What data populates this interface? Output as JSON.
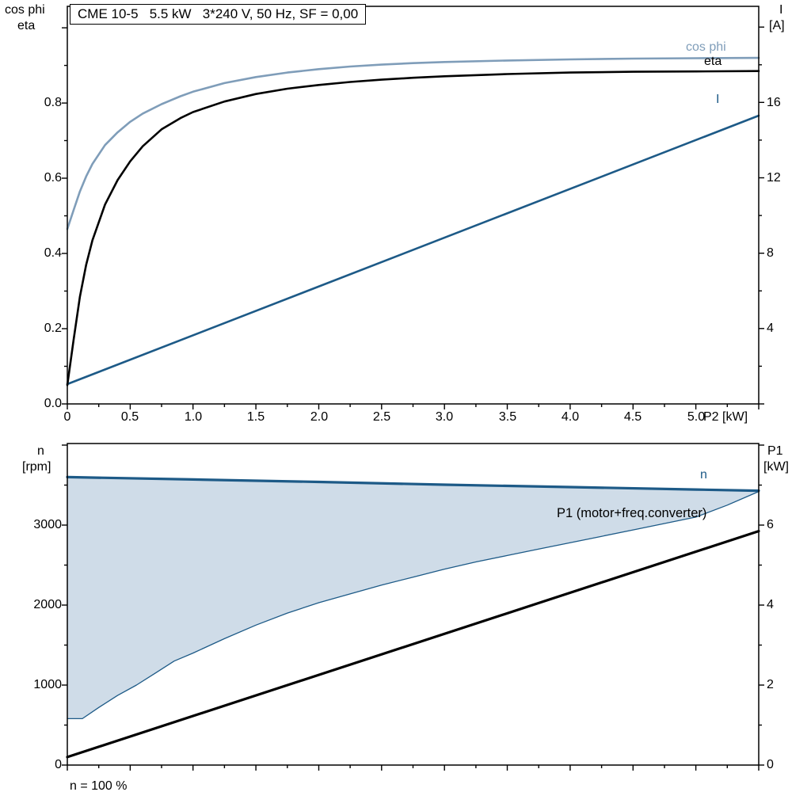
{
  "title": "CME 10-5   5.5 kW   3*240 V, 50 Hz, SF = 0,00",
  "colors": {
    "dark_blue": "#1d5a87",
    "light_blue": "#7f9db9",
    "fill_blue": "#cfdce8",
    "black": "#000000"
  },
  "top_chart": {
    "left_axis_title_1": "cos phi",
    "left_axis_title_2": "eta",
    "right_axis_title_1": "I",
    "right_axis_title_2": "[A]",
    "x_axis_label": "P2 [kW]",
    "y_ticks_left": [
      "0.0",
      "0.2",
      "0.4",
      "0.6",
      "0.8"
    ],
    "y_ticks_right": [
      "4",
      "8",
      "12",
      "16"
    ],
    "x_ticks": [
      "0",
      "0.5",
      "1.0",
      "1.5",
      "2.0",
      "2.5",
      "3.0",
      "3.5",
      "4.0",
      "4.5",
      "5.0"
    ],
    "curve_label_cos_phi": "cos phi",
    "curve_label_eta": "eta",
    "curve_label_current": "I"
  },
  "bottom_chart": {
    "left_axis_title_1": "n",
    "left_axis_title_2": "[rpm]",
    "right_axis_title_1": "P1",
    "right_axis_title_2": "[kW]",
    "y_ticks_left": [
      "0",
      "1000",
      "2000",
      "3000"
    ],
    "y_ticks_right": [
      "0",
      "2",
      "4",
      "6"
    ],
    "curve_label_n": "n",
    "curve_label_p1": "P1 (motor+freq.converter)",
    "footer_label": "n = 100 %"
  },
  "chart_data": [
    {
      "type": "line",
      "title": "CME 10-5   5.5 kW   3*240 V, 50 Hz, SF = 0,00",
      "xlabel": "P2 [kW]",
      "ylabel_left": "cos phi / eta",
      "ylabel_right": "I [A]",
      "xlim": [
        0,
        5.5
      ],
      "ylim_left": [
        0,
        1.057
      ],
      "ylim_right": [
        0,
        21.1
      ],
      "grid": false,
      "ticks": {
        "x_major": [
          0,
          0.5,
          1,
          1.5,
          2,
          2.5,
          3,
          3.5,
          4,
          4.5,
          5,
          5.5
        ],
        "x_minor": [
          0.25,
          0.75,
          1.25,
          1.75,
          2.25,
          2.75,
          3.25,
          3.75,
          4.25,
          4.75,
          5.25
        ],
        "y_left_major": [
          0,
          0.2,
          0.4,
          0.6,
          0.8,
          1.0
        ],
        "y_left_minor": [
          0.1,
          0.3,
          0.5,
          0.7,
          0.9
        ],
        "y_right_major": [
          0,
          4,
          8,
          12,
          16,
          20
        ],
        "y_right_minor": [
          2,
          6,
          10,
          14,
          18
        ]
      },
      "series": [
        {
          "name": "I",
          "axis": "right",
          "color_key": "dark_blue",
          "width": 2.6,
          "points": [
            [
              0,
              1.05
            ],
            [
              5.5,
              15.3
            ]
          ]
        },
        {
          "name": "eta",
          "axis": "left",
          "color_key": "black",
          "width": 2.6,
          "points": [
            [
              0,
              0.05
            ],
            [
              0.05,
              0.17
            ],
            [
              0.1,
              0.285
            ],
            [
              0.15,
              0.37
            ],
            [
              0.2,
              0.435
            ],
            [
              0.3,
              0.53
            ],
            [
              0.4,
              0.595
            ],
            [
              0.5,
              0.645
            ],
            [
              0.6,
              0.685
            ],
            [
              0.75,
              0.73
            ],
            [
              0.9,
              0.76
            ],
            [
              1.0,
              0.776
            ],
            [
              1.25,
              0.804
            ],
            [
              1.5,
              0.824
            ],
            [
              1.75,
              0.838
            ],
            [
              2.0,
              0.848
            ],
            [
              2.25,
              0.856
            ],
            [
              2.5,
              0.862
            ],
            [
              2.75,
              0.867
            ],
            [
              3.0,
              0.871
            ],
            [
              3.5,
              0.877
            ],
            [
              4.0,
              0.881
            ],
            [
              4.5,
              0.883
            ],
            [
              5.0,
              0.884
            ],
            [
              5.5,
              0.885
            ]
          ]
        },
        {
          "name": "cos phi",
          "axis": "left",
          "color_key": "light_blue",
          "width": 2.6,
          "points": [
            [
              0,
              0.465
            ],
            [
              0.05,
              0.515
            ],
            [
              0.1,
              0.565
            ],
            [
              0.15,
              0.605
            ],
            [
              0.2,
              0.638
            ],
            [
              0.3,
              0.688
            ],
            [
              0.4,
              0.722
            ],
            [
              0.5,
              0.75
            ],
            [
              0.6,
              0.772
            ],
            [
              0.75,
              0.797
            ],
            [
              0.9,
              0.818
            ],
            [
              1.0,
              0.83
            ],
            [
              1.25,
              0.853
            ],
            [
              1.5,
              0.869
            ],
            [
              1.75,
              0.881
            ],
            [
              2.0,
              0.89
            ],
            [
              2.25,
              0.897
            ],
            [
              2.5,
              0.902
            ],
            [
              2.75,
              0.906
            ],
            [
              3.0,
              0.909
            ],
            [
              3.5,
              0.913
            ],
            [
              4.0,
              0.916
            ],
            [
              4.5,
              0.918
            ],
            [
              5.0,
              0.919
            ],
            [
              5.5,
              0.92
            ]
          ]
        }
      ]
    },
    {
      "type": "line",
      "title": "",
      "xlabel": "n = 100 %",
      "ylabel_left": "n [rpm]",
      "ylabel_right": "P1 [kW]",
      "xlim": [
        0,
        5.5
      ],
      "ylim_left": [
        0,
        4020
      ],
      "ylim_right": [
        0,
        8.04
      ],
      "grid": false,
      "ticks": {
        "x_major": [
          0,
          0.5,
          1,
          1.5,
          2,
          2.5,
          3,
          3.5,
          4,
          4.5,
          5,
          5.5
        ],
        "x_minor": [
          0.25,
          0.75,
          1.25,
          1.75,
          2.25,
          2.75,
          3.25,
          3.75,
          4.25,
          4.75,
          5.25
        ],
        "y_left_major": [
          0,
          1000,
          2000,
          3000,
          4000
        ],
        "y_left_minor": [
          500,
          1500,
          2500,
          3500
        ],
        "y_right_major": [
          0,
          2,
          4,
          6,
          8
        ],
        "y_right_minor": [
          1,
          3,
          5,
          7
        ]
      },
      "series": [
        {
          "name": "n",
          "axis": "left",
          "color_key": "dark_blue",
          "width": 3.2,
          "points": [
            [
              0,
              3600
            ],
            [
              1,
              3570
            ],
            [
              2,
              3540
            ],
            [
              3,
              3505
            ],
            [
              4,
              3475
            ],
            [
              5,
              3445
            ],
            [
              5.5,
              3430
            ]
          ]
        },
        {
          "name": "speed range min",
          "axis": "left",
          "color_key": "dark_blue",
          "width": 1.3,
          "fill_to": "n",
          "points": [
            [
              0,
              580
            ],
            [
              0.12,
              580
            ],
            [
              0.25,
              720
            ],
            [
              0.4,
              870
            ],
            [
              0.55,
              1000
            ],
            [
              0.7,
              1150
            ],
            [
              0.85,
              1300
            ],
            [
              1.0,
              1400
            ],
            [
              1.25,
              1580
            ],
            [
              1.5,
              1750
            ],
            [
              1.75,
              1900
            ],
            [
              2.0,
              2030
            ],
            [
              2.25,
              2140
            ],
            [
              2.5,
              2250
            ],
            [
              2.75,
              2350
            ],
            [
              3.0,
              2450
            ],
            [
              3.25,
              2540
            ],
            [
              3.5,
              2620
            ],
            [
              3.75,
              2700
            ],
            [
              4.0,
              2780
            ],
            [
              4.25,
              2860
            ],
            [
              4.5,
              2940
            ],
            [
              4.75,
              3020
            ],
            [
              5.0,
              3100
            ],
            [
              5.25,
              3250
            ],
            [
              5.5,
              3420
            ]
          ]
        },
        {
          "name": "P1 (motor+freq.converter)",
          "axis": "right",
          "color_key": "black",
          "width": 3.2,
          "points": [
            [
              0,
              0.2
            ],
            [
              5.5,
              5.85
            ]
          ]
        }
      ]
    }
  ]
}
